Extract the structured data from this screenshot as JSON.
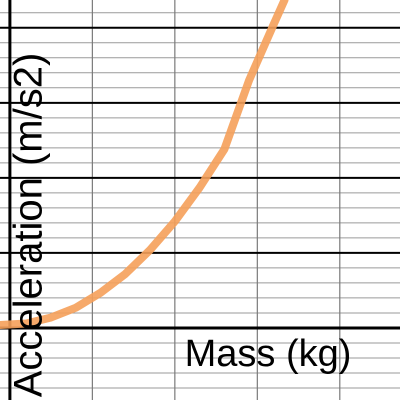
{
  "chart_data": {
    "type": "line",
    "x_label": "Mass (kg)",
    "y_label": "Acceleration (m/s2)",
    "xlim": [
      -0.12,
      4.73
    ],
    "ylim": [
      -0.96,
      4.37
    ],
    "x_grid": [
      1,
      2,
      3,
      4
    ],
    "y_grid_major": [
      0,
      1,
      2,
      3,
      4
    ],
    "y_grid_minor": [
      -0.8,
      -0.6,
      -0.4,
      -0.2,
      0.2,
      0.4,
      0.6,
      0.8,
      1.2,
      1.4,
      1.6,
      1.8,
      2.2,
      2.4,
      2.6,
      2.8,
      3.2,
      3.4,
      3.6,
      3.8,
      4.2
    ],
    "x": [
      -0.12,
      0.2,
      0.5,
      0.8,
      1.1,
      1.4,
      1.7,
      2.0,
      2.3,
      2.6,
      2.9,
      3.2,
      3.33
    ],
    "series": [
      {
        "color": "#f5a05a",
        "values": [
          0.04,
          0.06,
          0.14,
          0.27,
          0.47,
          0.72,
          1.04,
          1.42,
          1.87,
          2.38,
          3.3,
          4.05,
          4.37
        ]
      }
    ]
  }
}
